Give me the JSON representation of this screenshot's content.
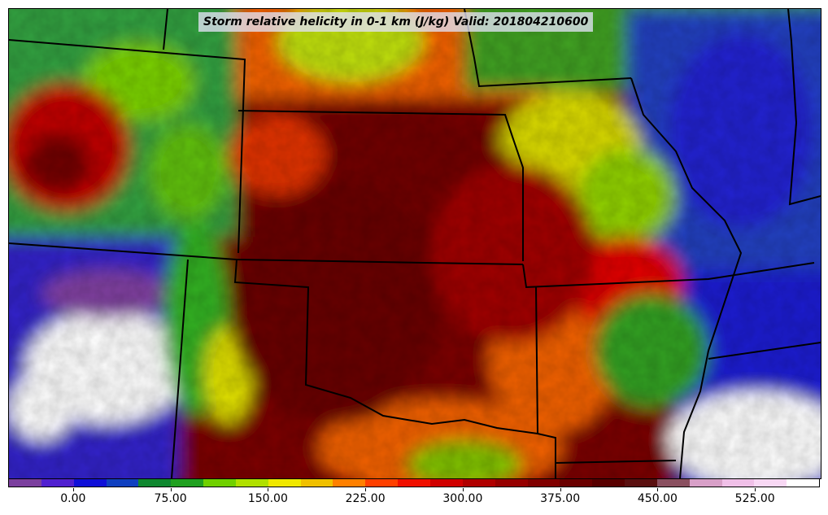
{
  "title": "Storm relative helicity in 0-1 km (J/kg) Valid: 201804210600",
  "colorbar": {
    "min": -50,
    "max": 575,
    "step": 25,
    "colors": [
      "#7b3f9e",
      "#5020d0",
      "#1010d8",
      "#1040c0",
      "#108830",
      "#20a020",
      "#70d000",
      "#b0e000",
      "#f0e800",
      "#f0c000",
      "#ff8000",
      "#ff4000",
      "#f01000",
      "#d00000",
      "#b00000",
      "#960000",
      "#800000",
      "#6a0000",
      "#580000",
      "#5a1010",
      "#8a5060",
      "#d8a0c8",
      "#f0c0e8",
      "#f8d8f4",
      "#ffffff"
    ],
    "ticks": [
      "0.00",
      "75.00",
      "150.00",
      "225.00",
      "300.00",
      "375.00",
      "450.00",
      "525.00"
    ],
    "tick_values": [
      0,
      75,
      150,
      225,
      300,
      375,
      450,
      525
    ]
  }
}
